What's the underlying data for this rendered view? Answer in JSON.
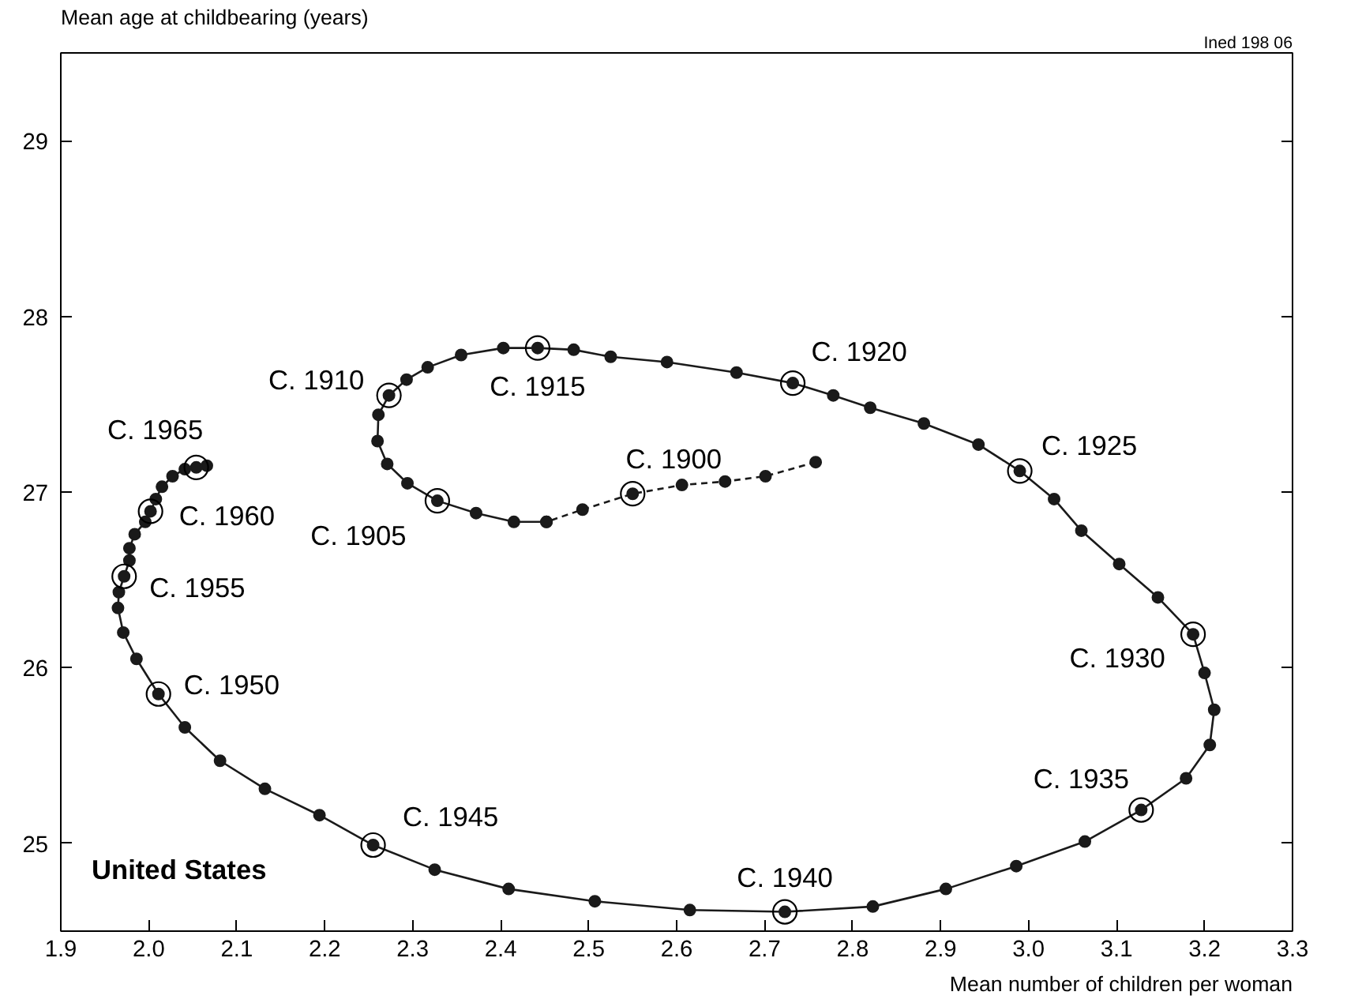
{
  "chart_data": {
    "type": "line",
    "title": "United States",
    "xlabel": "Mean number of children per woman",
    "ylabel": "Mean age at childbearing (years)",
    "xlim": [
      1.9,
      3.3
    ],
    "ylim": [
      24.5,
      29.5
    ],
    "xticks": [
      1.9,
      {
        "value": 2,
        "label": "2.0"
      },
      2.1,
      2.2,
      2.3,
      2.4,
      2.5,
      2.6,
      2.7,
      2.8,
      2.9,
      {
        "value": 3,
        "label": "3.0"
      },
      3.1,
      3.2,
      3.3
    ],
    "yticks": [
      25,
      26,
      27,
      28,
      29
    ],
    "grid": false,
    "marker": "circle",
    "series": [
      {
        "color": "#1a1a1a",
        "line_style": "dashed",
        "x": [
          2.758,
          2.701,
          2.655,
          2.606,
          2.55,
          2.493,
          2.452
        ],
        "values": [
          27.17,
          27.09,
          27.06,
          27.04,
          26.99,
          26.9,
          26.83
        ]
      },
      {
        "color": "#1a1a1a",
        "line_style": "solid",
        "x": [
          2.452,
          2.415,
          2.372,
          2.328,
          2.294,
          2.271,
          2.26,
          2.261,
          2.273,
          2.293,
          2.317,
          2.355,
          2.403,
          2.442,
          2.483,
          2.525,
          2.589,
          2.668,
          2.732,
          2.778,
          2.82,
          2.881,
          2.943,
          2.99,
          3.029,
          3.06,
          3.103,
          3.147,
          3.187,
          3.2,
          3.211,
          3.206,
          3.179,
          3.128,
          3.064,
          2.986,
          2.906,
          2.823,
          2.723,
          2.615,
          2.507,
          2.409,
          2.325,
          2.255,
          2.194,
          2.132,
          2.081,
          2.041,
          2.011,
          1.986,
          1.971,
          1.965,
          1.966,
          1.972,
          1.978,
          1.978,
          1.984,
          1.996,
          2.002,
          2.008,
          2.015,
          2.027,
          2.041,
          2.054,
          2.066
        ],
        "values": [
          26.83,
          26.83,
          26.88,
          26.95,
          27.05,
          27.16,
          27.29,
          27.44,
          27.55,
          27.64,
          27.71,
          27.78,
          27.82,
          27.82,
          27.81,
          27.77,
          27.74,
          27.68,
          27.62,
          27.55,
          27.48,
          27.39,
          27.27,
          27.12,
          26.96,
          26.78,
          26.59,
          26.4,
          26.19,
          25.97,
          25.76,
          25.56,
          25.37,
          25.19,
          25.01,
          24.87,
          24.74,
          24.64,
          24.61,
          24.62,
          24.67,
          24.74,
          24.85,
          24.99,
          25.16,
          25.31,
          25.47,
          25.66,
          25.85,
          26.05,
          26.2,
          26.34,
          26.43,
          26.52,
          26.61,
          26.68,
          26.76,
          26.83,
          26.89,
          26.96,
          27.03,
          27.09,
          27.13,
          27.14,
          27.15
        ]
      }
    ],
    "annotations": [
      "Ined 198 06",
      {
        "text": "C. 1900",
        "x": 2.55,
        "y": 26.99
      },
      {
        "text": "C. 1905",
        "x": 2.328,
        "y": 26.95
      },
      {
        "text": "C. 1910",
        "x": 2.273,
        "y": 27.55
      },
      {
        "text": "C. 1915",
        "x": 2.442,
        "y": 27.82
      },
      {
        "text": "C. 1920",
        "x": 2.732,
        "y": 27.62
      },
      {
        "text": "C. 1925",
        "x": 2.99,
        "y": 27.12
      },
      {
        "text": "C. 1930",
        "x": 3.187,
        "y": 26.19
      },
      {
        "text": "C. 1935",
        "x": 3.128,
        "y": 25.19
      },
      {
        "text": "C. 1940",
        "x": 2.723,
        "y": 24.61
      },
      {
        "text": "C. 1945",
        "x": 2.255,
        "y": 24.99
      },
      {
        "text": "C. 1950",
        "x": 2.011,
        "y": 25.85
      },
      {
        "text": "C. 1955",
        "x": 1.972,
        "y": 26.52
      },
      {
        "text": "C. 1960",
        "x": 2.002,
        "y": 26.89
      },
      {
        "text": "C. 1965",
        "x": 2.054,
        "y": 27.14
      }
    ]
  }
}
